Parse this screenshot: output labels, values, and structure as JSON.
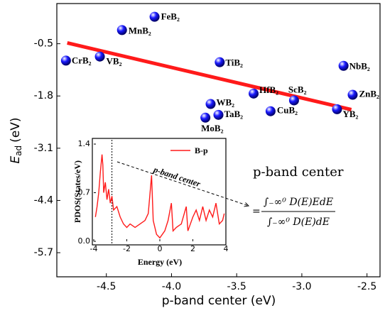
{
  "chart_data": [
    {
      "type": "scatter",
      "x_label": "p-band center (eV)",
      "y_label": {
        "symbol": "E",
        "subscript": "ad",
        "unit": "(eV)"
      },
      "xlim": [
        -4.88,
        -2.4
      ],
      "ylim": [
        -6.3,
        0.5
      ],
      "xticks": [
        -4.5,
        {
          "value": -4,
          "label": "-4.0"
        },
        -3.5,
        {
          "value": -3,
          "label": "-3.0"
        },
        -2.5
      ],
      "yticks": [
        -0.5,
        -1.8,
        -3.1,
        -4.4,
        -5.7
      ],
      "color": "#1a1aff",
      "point_labels": [
        "FeB₂",
        "MnB₂",
        "CrB₂",
        "VB₂",
        "TiB₂",
        "NbB₂",
        "HfB₂",
        "ScB₂",
        "ZnB₂",
        "WB₂",
        "CuB₂",
        "YB₂",
        "TaB₂",
        "MoB₂"
      ],
      "x": [
        -4.13,
        -4.38,
        -4.81,
        -4.55,
        -3.63,
        -2.68,
        -3.37,
        -3.06,
        -2.61,
        -3.7,
        -3.24,
        -2.73,
        -3.64,
        -3.74
      ],
      "values": [
        0.17,
        -0.16,
        -0.92,
        -0.82,
        -0.96,
        -1.05,
        -1.74,
        -1.91,
        -1.77,
        -2.0,
        -2.18,
        -2.13,
        -2.27,
        -2.34
      ],
      "trend_line": {
        "color": "#ff1a1a",
        "x": [
          -4.8,
          -2.62
        ],
        "values": [
          -0.48,
          -2.14
        ]
      }
    },
    {
      "type": "line",
      "x_label": "Energy (eV)",
      "y_label": "PDOS(States/eV)",
      "xlim": [
        -4,
        4
      ],
      "ylim": [
        0,
        1.4
      ],
      "xticks": [
        -4,
        -2,
        0,
        2,
        4
      ],
      "yticks": [
        {
          "value": 0,
          "label": "0.0"
        },
        0.7,
        1.4
      ],
      "vline": -2.9,
      "annotation": "p-band center",
      "formula": {
        "lead": "p-band center",
        "equals": "=",
        "numerator": "∫₋∞⁰ D(E)EdE",
        "denominator": "∫₋∞⁰ D(E)dE"
      },
      "x": [
        -3.9,
        -3.8,
        -3.7,
        -3.6,
        -3.5,
        -3.45,
        -3.4,
        -3.3,
        -3.2,
        -3.1,
        -3.0,
        -2.9,
        -2.8,
        -2.6,
        -2.4,
        -2.2,
        -2.0,
        -1.8,
        -1.5,
        -1.2,
        -0.9,
        -0.7,
        -0.5,
        -0.4,
        -0.2,
        0.0,
        0.3,
        0.5,
        0.7,
        0.8,
        1.0,
        1.3,
        1.6,
        1.7,
        2.0,
        2.2,
        2.4,
        2.6,
        2.8,
        3.0,
        3.2,
        3.4,
        3.6,
        3.8,
        3.9
      ],
      "series": [
        {
          "name": "B-p",
          "color": "#ff1a1a",
          "values": [
            0.35,
            0.5,
            0.7,
            1.0,
            1.25,
            1.1,
            0.7,
            0.85,
            0.6,
            0.75,
            0.55,
            0.65,
            0.45,
            0.5,
            0.35,
            0.25,
            0.2,
            0.25,
            0.2,
            0.25,
            0.3,
            0.4,
            0.95,
            0.3,
            0.1,
            0.05,
            0.15,
            0.3,
            0.55,
            0.15,
            0.2,
            0.25,
            0.5,
            0.15,
            0.35,
            0.45,
            0.3,
            0.5,
            0.3,
            0.45,
            0.35,
            0.55,
            0.25,
            0.3,
            0.4
          ]
        }
      ]
    }
  ]
}
